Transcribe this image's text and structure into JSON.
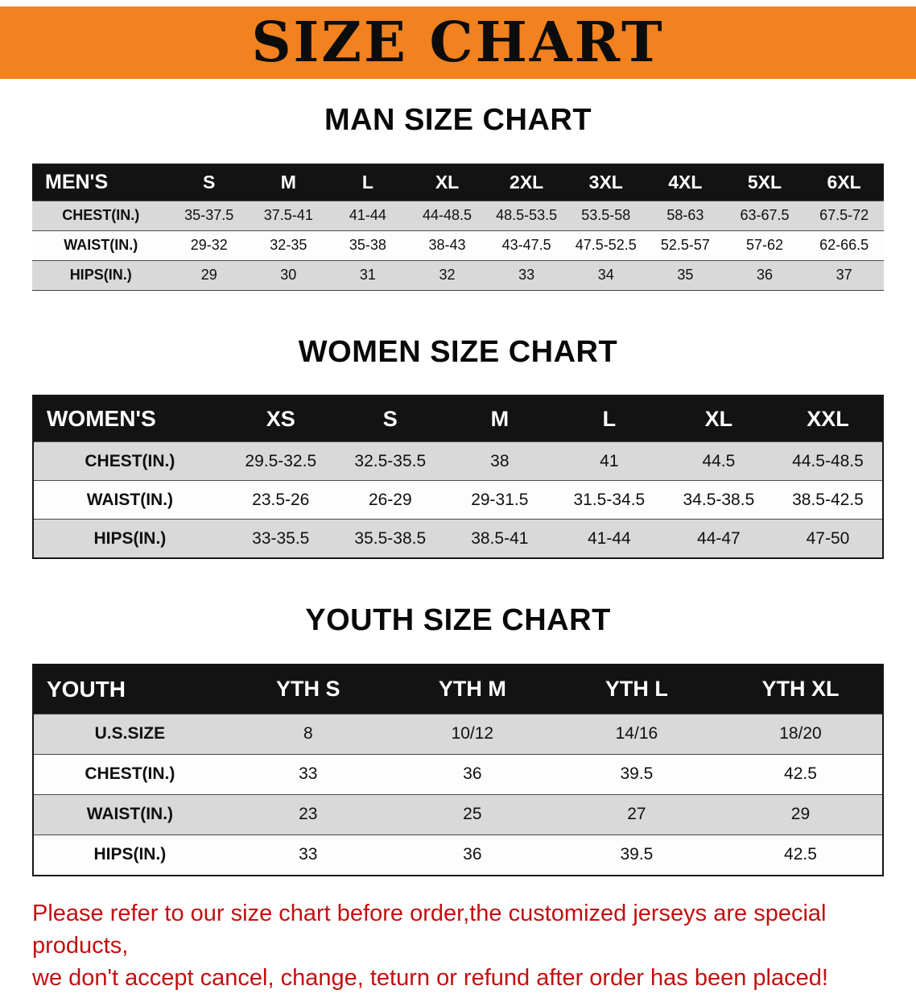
{
  "banner": {
    "title": "SIZE CHART",
    "bg_color": "#f1821f"
  },
  "sections": [
    {
      "id": "men",
      "heading": "MAN SIZE CHART",
      "table": {
        "header": [
          "MEN'S",
          "S",
          "M",
          "L",
          "XL",
          "2XL",
          "3XL",
          "4XL",
          "5XL",
          "6XL"
        ],
        "rows": [
          [
            "CHEST(IN.)",
            "35-37.5",
            "37.5-41",
            "41-44",
            "44-48.5",
            "48.5-53.5",
            "53.5-58",
            "58-63",
            "63-67.5",
            "67.5-72"
          ],
          [
            "WAIST(IN.)",
            "29-32",
            "32-35",
            "35-38",
            "38-43",
            "43-47.5",
            "47.5-52.5",
            "52.5-57",
            "57-62",
            "62-66.5"
          ],
          [
            "HIPS(IN.)",
            "29",
            "30",
            "31",
            "32",
            "33",
            "34",
            "35",
            "36",
            "37"
          ]
        ]
      }
    },
    {
      "id": "women",
      "heading": "WOMEN SIZE CHART",
      "table": {
        "header": [
          "WOMEN'S",
          "XS",
          "S",
          "M",
          "L",
          "XL",
          "XXL"
        ],
        "rows": [
          [
            "CHEST(IN.)",
            "29.5-32.5",
            "32.5-35.5",
            "38",
            "41",
            "44.5",
            "44.5-48.5"
          ],
          [
            "WAIST(IN.)",
            "23.5-26",
            "26-29",
            "29-31.5",
            "31.5-34.5",
            "34.5-38.5",
            "38.5-42.5"
          ],
          [
            "HIPS(IN.)",
            "33-35.5",
            "35.5-38.5",
            "38.5-41",
            "41-44",
            "44-47",
            "47-50"
          ]
        ]
      }
    },
    {
      "id": "youth",
      "heading": "YOUTH SIZE CHART",
      "table": {
        "header": [
          "YOUTH",
          "YTH S",
          "YTH M",
          "YTH L",
          "YTH XL"
        ],
        "rows": [
          [
            "U.S.SIZE",
            "8",
            "10/12",
            "14/16",
            "18/20"
          ],
          [
            "CHEST(IN.)",
            "33",
            "36",
            "39.5",
            "42.5"
          ],
          [
            "WAIST(IN.)",
            "23",
            "25",
            "27",
            "29"
          ],
          [
            "HIPS(IN.)",
            "33",
            "36",
            "39.5",
            "42.5"
          ]
        ]
      }
    }
  ],
  "footer": {
    "text_color": "#c21010",
    "line1": "Please refer to our size chart before order,the customized jerseys are special products,",
    "line2": "we don't accept cancel, change, teturn or refund after order has been placed!"
  }
}
